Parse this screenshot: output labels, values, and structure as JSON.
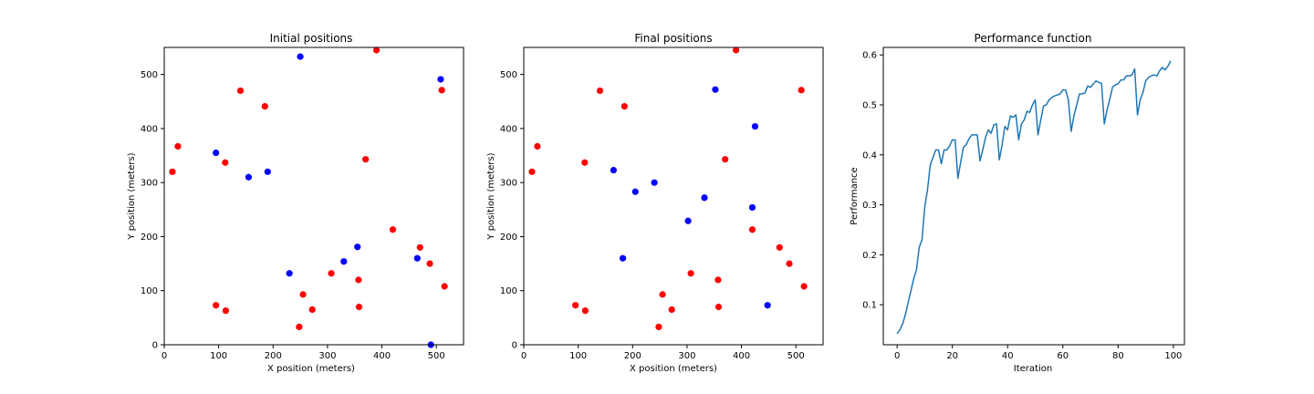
{
  "chart_data": [
    {
      "type": "scatter",
      "title": "Initial positions",
      "xlabel": "X position (meters)",
      "ylabel": "Y position (meters)",
      "xlim": [
        0,
        550
      ],
      "ylim": [
        0,
        550
      ],
      "xticks": [
        0,
        100,
        200,
        300,
        400,
        500
      ],
      "yticks": [
        0,
        100,
        200,
        300,
        400,
        500
      ],
      "grid": false,
      "series": [
        {
          "color": "#ff0000",
          "points": [
            [
              15,
              320
            ],
            [
              25,
              367
            ],
            [
              95,
              73
            ],
            [
              112,
              337
            ],
            [
              113,
              63
            ],
            [
              140,
              470
            ],
            [
              185,
              441
            ],
            [
              255,
              93
            ],
            [
              248,
              33
            ],
            [
              272,
              65
            ],
            [
              307,
              132
            ],
            [
              357,
              120
            ],
            [
              358,
              70
            ],
            [
              370,
              343
            ],
            [
              390,
              545
            ],
            [
              420,
              213
            ],
            [
              470,
              180
            ],
            [
              488,
              150
            ],
            [
              510,
              471
            ],
            [
              515,
              108
            ]
          ]
        },
        {
          "color": "#0000ff",
          "points": [
            [
              95,
              355
            ],
            [
              155,
              310
            ],
            [
              190,
              320
            ],
            [
              230,
              132
            ],
            [
              250,
              533
            ],
            [
              330,
              154
            ],
            [
              355,
              181
            ],
            [
              465,
              160
            ],
            [
              490,
              0
            ],
            [
              508,
              491
            ]
          ]
        }
      ]
    },
    {
      "type": "scatter",
      "title": "Final positions",
      "xlabel": "X position (meters)",
      "ylabel": "Y position (meters)",
      "xlim": [
        0,
        550
      ],
      "ylim": [
        0,
        550
      ],
      "xticks": [
        0,
        100,
        200,
        300,
        400,
        500
      ],
      "yticks": [
        0,
        100,
        200,
        300,
        400,
        500
      ],
      "grid": false,
      "series": [
        {
          "color": "#ff0000",
          "points": [
            [
              15,
              320
            ],
            [
              25,
              367
            ],
            [
              95,
              73
            ],
            [
              112,
              337
            ],
            [
              113,
              63
            ],
            [
              140,
              470
            ],
            [
              185,
              441
            ],
            [
              255,
              93
            ],
            [
              248,
              33
            ],
            [
              272,
              65
            ],
            [
              307,
              132
            ],
            [
              357,
              120
            ],
            [
              358,
              70
            ],
            [
              370,
              343
            ],
            [
              390,
              545
            ],
            [
              420,
              213
            ],
            [
              470,
              180
            ],
            [
              488,
              150
            ],
            [
              510,
              471
            ],
            [
              515,
              108
            ]
          ]
        },
        {
          "color": "#0000ff",
          "points": [
            [
              165,
              323
            ],
            [
              182,
              160
            ],
            [
              205,
              283
            ],
            [
              240,
              300
            ],
            [
              302,
              229
            ],
            [
              332,
              272
            ],
            [
              352,
              472
            ],
            [
              420,
              254
            ],
            [
              425,
              404
            ],
            [
              448,
              73
            ]
          ]
        }
      ]
    },
    {
      "type": "line",
      "title": "Performance function",
      "xlabel": "Iteration",
      "ylabel": "Performance",
      "xlim": [
        -5,
        104
      ],
      "ylim": [
        0.02,
        0.615
      ],
      "xticks": [
        0,
        20,
        40,
        60,
        80,
        100
      ],
      "yticks": [
        0.1,
        0.2,
        0.3,
        0.4,
        0.5,
        0.6
      ],
      "ytick_labels": [
        "0.1",
        "0.2",
        "0.3",
        "0.4",
        "0.5",
        "0.6"
      ],
      "grid": false,
      "series": [
        {
          "color": "#1f77b4",
          "x": [
            0,
            1,
            2,
            3,
            4,
            5,
            6,
            7,
            8,
            9,
            10,
            11,
            12,
            13,
            14,
            15,
            16,
            17,
            18,
            19,
            20,
            21,
            22,
            23,
            24,
            25,
            26,
            27,
            28,
            29,
            30,
            31,
            32,
            33,
            34,
            35,
            36,
            37,
            38,
            39,
            40,
            41,
            42,
            43,
            44,
            45,
            46,
            47,
            48,
            49,
            50,
            51,
            52,
            53,
            54,
            55,
            56,
            57,
            58,
            59,
            60,
            61,
            62,
            63,
            64,
            65,
            66,
            67,
            68,
            69,
            70,
            71,
            72,
            73,
            74,
            75,
            76,
            77,
            78,
            79,
            80,
            81,
            82,
            83,
            84,
            85,
            86,
            87,
            88,
            89,
            90,
            91,
            92,
            93,
            94,
            95,
            96,
            97,
            98,
            99
          ],
          "y": [
            0.042,
            0.05,
            0.062,
            0.08,
            0.105,
            0.128,
            0.152,
            0.17,
            0.215,
            0.23,
            0.295,
            0.33,
            0.38,
            0.395,
            0.41,
            0.41,
            0.382,
            0.41,
            0.41,
            0.418,
            0.43,
            0.43,
            0.353,
            0.385,
            0.415,
            0.42,
            0.432,
            0.44,
            0.44,
            0.44,
            0.388,
            0.41,
            0.435,
            0.45,
            0.443,
            0.46,
            0.462,
            0.39,
            0.42,
            0.457,
            0.45,
            0.478,
            0.475,
            0.48,
            0.43,
            0.462,
            0.47,
            0.487,
            0.485,
            0.5,
            0.51,
            0.44,
            0.47,
            0.498,
            0.5,
            0.51,
            0.515,
            0.518,
            0.52,
            0.522,
            0.53,
            0.53,
            0.51,
            0.447,
            0.478,
            0.5,
            0.522,
            0.522,
            0.524,
            0.538,
            0.535,
            0.542,
            0.548,
            0.545,
            0.543,
            0.462,
            0.49,
            0.512,
            0.536,
            0.54,
            0.542,
            0.55,
            0.55,
            0.558,
            0.558,
            0.56,
            0.572,
            0.48,
            0.51,
            0.525,
            0.548,
            0.555,
            0.558,
            0.56,
            0.558,
            0.568,
            0.575,
            0.57,
            0.577,
            0.588
          ]
        }
      ]
    }
  ]
}
